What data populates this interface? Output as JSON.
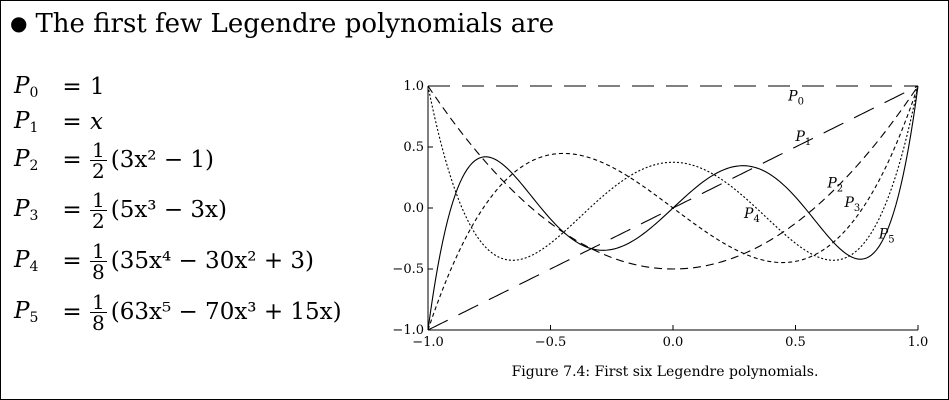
{
  "heading": "The first few Legendre polynomials are",
  "equations": [
    {
      "lhs": "P",
      "sub": "0",
      "eq": "=",
      "frac": null,
      "rhs": "1"
    },
    {
      "lhs": "P",
      "sub": "1",
      "eq": "=",
      "frac": null,
      "rhs": "x"
    },
    {
      "lhs": "P",
      "sub": "2",
      "eq": "=",
      "frac": {
        "num": "1",
        "den": "2"
      },
      "rhs": "(3x² − 1)"
    },
    {
      "lhs": "P",
      "sub": "3",
      "eq": "=",
      "frac": {
        "num": "1",
        "den": "2"
      },
      "rhs": "(5x³ − 3x)"
    },
    {
      "lhs": "P",
      "sub": "4",
      "eq": "=",
      "frac": {
        "num": "1",
        "den": "8"
      },
      "rhs": "(35x⁴ − 30x² + 3)"
    },
    {
      "lhs": "P",
      "sub": "5",
      "eq": "=",
      "frac": {
        "num": "1",
        "den": "8"
      },
      "rhs": "(63x⁵ − 70x³ + 15x)"
    }
  ],
  "chart_data": {
    "type": "line",
    "xlim": [
      -1.0,
      1.0
    ],
    "ylim": [
      -1.0,
      1.0
    ],
    "xticks": [
      "−1.0",
      "−0.5",
      "0.0",
      "0.5",
      "1.0"
    ],
    "yticks": [
      "1.0",
      "0.5",
      "0.0",
      "−0.5",
      "−1.0"
    ],
    "series": [
      {
        "name": "P0",
        "style": "long-dash",
        "coeffs": [
          1
        ]
      },
      {
        "name": "P1",
        "style": "long-dash",
        "coeffs": [
          0,
          1
        ]
      },
      {
        "name": "P2",
        "style": "dash",
        "coeffs": [
          -0.5,
          0,
          1.5
        ]
      },
      {
        "name": "P3",
        "style": "short-dash",
        "coeffs": [
          0,
          -1.5,
          0,
          2.5
        ]
      },
      {
        "name": "P4",
        "style": "dot",
        "coeffs": [
          0.375,
          0,
          -3.75,
          0,
          4.375
        ]
      },
      {
        "name": "P5",
        "style": "solid",
        "coeffs": [
          0,
          1.875,
          0,
          -8.75,
          0,
          7.875
        ]
      }
    ],
    "caption": "Figure 7.4: First six Legendre polynomials."
  }
}
